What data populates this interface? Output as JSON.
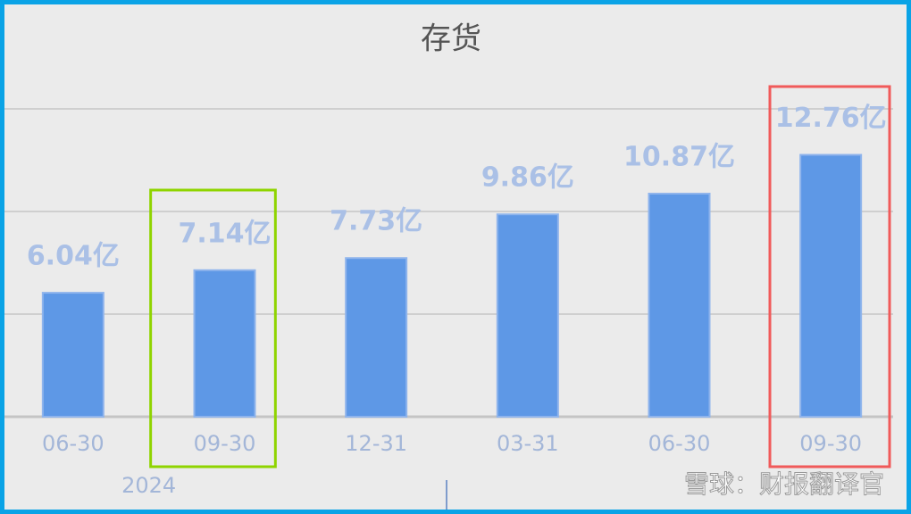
{
  "chart_data": {
    "type": "bar",
    "title": "存货",
    "categories": [
      "06-30",
      "09-30",
      "12-31",
      "03-31",
      "06-30",
      "09-30"
    ],
    "values": [
      6.04,
      7.14,
      7.73,
      9.86,
      10.87,
      12.76
    ],
    "value_labels": [
      "6.04亿",
      "7.14亿",
      "7.73亿",
      "9.86亿",
      "10.87亿",
      "12.76亿"
    ],
    "year_label": "2024",
    "color": "#5e98e6",
    "ylim": [
      0,
      15
    ],
    "yticks": [
      0,
      5,
      10,
      15
    ],
    "grid": true
  },
  "watermark": "雪球：财报翻译官"
}
